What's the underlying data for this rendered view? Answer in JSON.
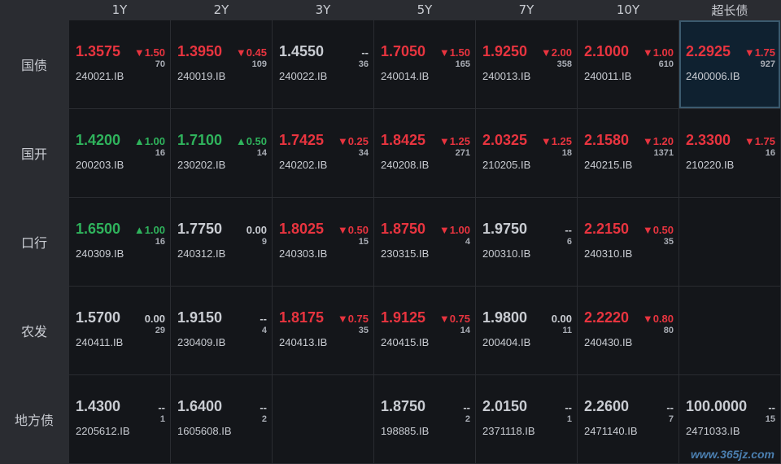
{
  "columns": [
    "1Y",
    "2Y",
    "3Y",
    "5Y",
    "7Y",
    "10Y",
    "超长债"
  ],
  "rows": [
    {
      "label": "国债",
      "cells": [
        {
          "yield": "1.3575",
          "change": "▼1.50",
          "count": "70",
          "code": "240021.IB",
          "trend": "up"
        },
        {
          "yield": "1.3950",
          "change": "▼0.45",
          "count": "109",
          "code": "240019.IB",
          "trend": "up"
        },
        {
          "yield": "1.4550",
          "change": "--",
          "count": "36",
          "code": "240022.IB",
          "trend": "flat"
        },
        {
          "yield": "1.7050",
          "change": "▼1.50",
          "count": "165",
          "code": "240014.IB",
          "trend": "up"
        },
        {
          "yield": "1.9250",
          "change": "▼2.00",
          "count": "358",
          "code": "240013.IB",
          "trend": "up"
        },
        {
          "yield": "2.1000",
          "change": "▼1.00",
          "count": "610",
          "code": "240011.IB",
          "trend": "up"
        },
        {
          "yield": "2.2925",
          "change": "▼1.75",
          "count": "927",
          "code": "2400006.IB",
          "trend": "up",
          "highlight": true
        }
      ]
    },
    {
      "label": "国开",
      "cells": [
        {
          "yield": "1.4200",
          "change": "▲1.00",
          "count": "16",
          "code": "200203.IB",
          "trend": "down"
        },
        {
          "yield": "1.7100",
          "change": "▲0.50",
          "count": "14",
          "code": "230202.IB",
          "trend": "down"
        },
        {
          "yield": "1.7425",
          "change": "▼0.25",
          "count": "34",
          "code": "240202.IB",
          "trend": "up"
        },
        {
          "yield": "1.8425",
          "change": "▼1.25",
          "count": "271",
          "code": "240208.IB",
          "trend": "up"
        },
        {
          "yield": "2.0325",
          "change": "▼1.25",
          "count": "18",
          "code": "210205.IB",
          "trend": "up"
        },
        {
          "yield": "2.1580",
          "change": "▼1.20",
          "count": "1371",
          "code": "240215.IB",
          "trend": "up"
        },
        {
          "yield": "2.3300",
          "change": "▼1.75",
          "count": "16",
          "code": "210220.IB",
          "trend": "up"
        }
      ]
    },
    {
      "label": "口行",
      "cells": [
        {
          "yield": "1.6500",
          "change": "▲1.00",
          "count": "16",
          "code": "240309.IB",
          "trend": "down"
        },
        {
          "yield": "1.7750",
          "change": "0.00",
          "count": "9",
          "code": "240312.IB",
          "trend": "flat"
        },
        {
          "yield": "1.8025",
          "change": "▼0.50",
          "count": "15",
          "code": "240303.IB",
          "trend": "up"
        },
        {
          "yield": "1.8750",
          "change": "▼1.00",
          "count": "4",
          "code": "230315.IB",
          "trend": "up"
        },
        {
          "yield": "1.9750",
          "change": "--",
          "count": "6",
          "code": "200310.IB",
          "trend": "flat"
        },
        {
          "yield": "2.2150",
          "change": "▼0.50",
          "count": "35",
          "code": "240310.IB",
          "trend": "up"
        },
        null
      ]
    },
    {
      "label": "农发",
      "cells": [
        {
          "yield": "1.5700",
          "change": "0.00",
          "count": "29",
          "code": "240411.IB",
          "trend": "flat"
        },
        {
          "yield": "1.9150",
          "change": "--",
          "count": "4",
          "code": "230409.IB",
          "trend": "flat"
        },
        {
          "yield": "1.8175",
          "change": "▼0.75",
          "count": "35",
          "code": "240413.IB",
          "trend": "up"
        },
        {
          "yield": "1.9125",
          "change": "▼0.75",
          "count": "14",
          "code": "240415.IB",
          "trend": "up"
        },
        {
          "yield": "1.9800",
          "change": "0.00",
          "count": "11",
          "code": "200404.IB",
          "trend": "flat"
        },
        {
          "yield": "2.2220",
          "change": "▼0.80",
          "count": "80",
          "code": "240430.IB",
          "trend": "up"
        },
        null
      ]
    },
    {
      "label": "地方债",
      "cells": [
        {
          "yield": "1.4300",
          "change": "--",
          "count": "1",
          "code": "2205612.IB",
          "trend": "flat"
        },
        {
          "yield": "1.6400",
          "change": "--",
          "count": "2",
          "code": "1605608.IB",
          "trend": "flat"
        },
        null,
        {
          "yield": "1.8750",
          "change": "--",
          "count": "2",
          "code": "198885.IB",
          "trend": "flat"
        },
        {
          "yield": "2.0150",
          "change": "--",
          "count": "1",
          "code": "2371118.IB",
          "trend": "flat"
        },
        {
          "yield": "2.2600",
          "change": "--",
          "count": "7",
          "code": "2471140.IB",
          "trend": "flat"
        },
        {
          "yield": "100.0000",
          "change": "--",
          "count": "15",
          "code": "2471033.IB",
          "trend": "flat"
        }
      ]
    }
  ],
  "colors": {
    "up": "#e8343f",
    "down": "#2fb35c",
    "flat": "#c9ccd2",
    "highlight_border": "#3b5a6e"
  },
  "watermark": "www.365jz.com"
}
